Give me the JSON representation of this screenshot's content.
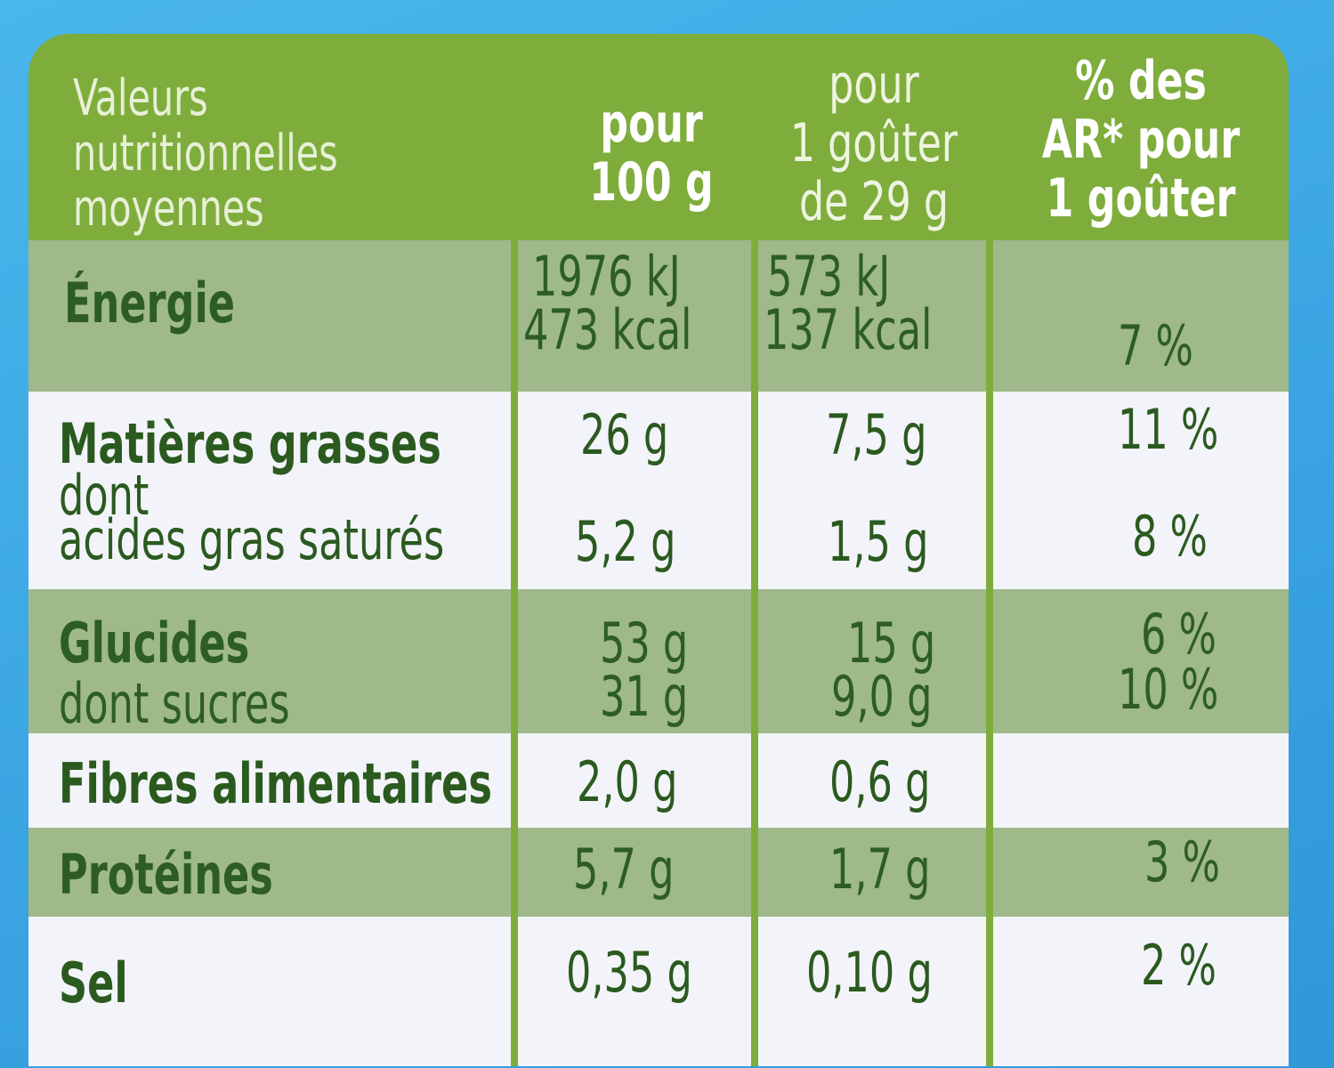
{
  "header": {
    "col1": [
      "Valeurs",
      "nutritionnelles",
      "moyennes"
    ],
    "col2": [
      "pour",
      "100 g"
    ],
    "col3": [
      "pour",
      "1 goûter",
      "de 29 g"
    ],
    "col4": [
      "% des",
      "AR* pour",
      "1 goûter"
    ]
  },
  "rows": [
    {
      "label": "Énergie",
      "per100": [
        "1976 kJ",
        "473 kcal"
      ],
      "perServing": [
        "573 kJ",
        "137 kcal"
      ],
      "ar": "7 %"
    },
    {
      "label": "Matières grasses",
      "per100": "26 g",
      "perServing": "7,5 g",
      "ar": "11 %"
    },
    {
      "label": "dont",
      "label2": "acides gras saturés",
      "per100": "5,2 g",
      "perServing": "1,5 g",
      "ar": "8 %"
    },
    {
      "label": "Glucides",
      "per100": "53 g",
      "perServing": "15 g",
      "ar": "6 %"
    },
    {
      "label": "dont sucres",
      "per100": "31 g",
      "perServing": "9,0 g",
      "ar": "10 %"
    },
    {
      "label": "Fibres alimentaires",
      "per100": "2,0 g",
      "perServing": "0,6 g",
      "ar": ""
    },
    {
      "label": "Protéines",
      "per100": "5,7 g",
      "perServing": "1,7 g",
      "ar": "3 %"
    },
    {
      "label": "Sel",
      "per100": "0,35 g",
      "perServing": "0,10 g",
      "ar": "2 %"
    }
  ],
  "colors": {
    "green": "#7fad3c",
    "shade": "#9fb98a",
    "light": "#f3f4fa",
    "text": "#2b5a1f",
    "background": "#3aa5e2"
  }
}
